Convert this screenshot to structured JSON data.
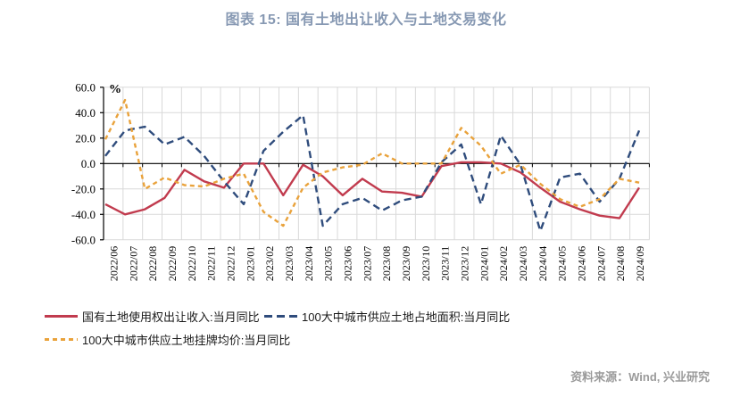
{
  "title": "图表 15: 国有土地出让收入与土地交易变化",
  "source_note": "资料来源：Wind, 兴业研究",
  "y_axis": {
    "unit": "%",
    "tick_labels": [
      "60.0",
      "40.0",
      "20.0",
      "0.0",
      "-20.0",
      "-40.0",
      "-60.0"
    ]
  },
  "chart_data": {
    "type": "line",
    "title": "图表 15: 国有土地出让收入与土地交易变化",
    "xlabel": "",
    "ylabel": "%",
    "ylim": [
      -60,
      60
    ],
    "y_step": 20,
    "grid": true,
    "legend_position": "bottom",
    "categories": [
      "2022/06",
      "2022/07",
      "2022/08",
      "2022/09",
      "2022/10",
      "2022/11",
      "2022/12",
      "2023/01",
      "2023/02",
      "2023/03",
      "2023/04",
      "2023/05",
      "2023/06",
      "2023/07",
      "2023/08",
      "2023/09",
      "2023/10",
      "2023/11",
      "2023/12",
      "2024/01",
      "2024/02",
      "2024/03",
      "2024/04",
      "2024/05",
      "2024/06",
      "2024/07",
      "2024/08",
      "2024/09"
    ],
    "series": [
      {
        "name": "国有土地使用权出让收入:当月同比",
        "color": "#c13b4e",
        "style": "solid",
        "values": [
          -32,
          -40,
          -36,
          -27,
          -5,
          -14,
          -19,
          0,
          0,
          -25,
          -1,
          -10,
          -25,
          -12,
          -22,
          -23,
          -26,
          -2,
          1,
          1,
          0,
          -7,
          -19,
          -30,
          -36,
          -41,
          -43,
          -19
        ]
      },
      {
        "name": "100大中城市供应土地占地面积:当月同比",
        "color": "#2f4c7c",
        "style": "dashed",
        "values": [
          6,
          26,
          29,
          15,
          21,
          6,
          -14,
          -32,
          10,
          25,
          38,
          -49,
          -32,
          -27,
          -37,
          -29,
          -26,
          1,
          15,
          -32,
          22,
          -1,
          -53,
          -11,
          -8,
          -30,
          -12,
          26
        ]
      },
      {
        "name": "100大中城市供应土地挂牌均价:当月同比",
        "color": "#e9a23b",
        "style": "dashed-short",
        "values": [
          19,
          50,
          -20,
          -11,
          -17,
          -18,
          -12,
          -8,
          -38,
          -49,
          -19,
          -7,
          -3,
          -1,
          8,
          0,
          0,
          0,
          28,
          14,
          -8,
          -1,
          -16,
          -28,
          -34,
          -28,
          -12,
          -15
        ]
      }
    ]
  }
}
